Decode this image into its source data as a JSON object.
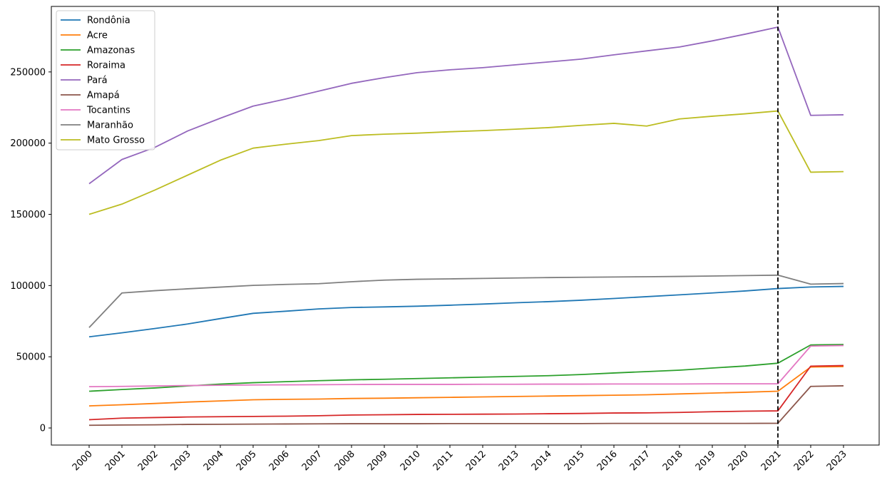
{
  "chart_data": {
    "type": "line",
    "x": [
      "2000",
      "2001",
      "2002",
      "2003",
      "2004",
      "2005",
      "2006",
      "2007",
      "2008",
      "2009",
      "2010",
      "2011",
      "2012",
      "2013",
      "2014",
      "2015",
      "2016",
      "2017",
      "2018",
      "2019",
      "2020",
      "2021",
      "2022",
      "2023"
    ],
    "ylim": [
      -12000,
      296000
    ],
    "yticks": [
      0,
      50000,
      100000,
      150000,
      200000,
      250000
    ],
    "grid": false,
    "legend_position": "top-left",
    "vline": {
      "x": "2021",
      "style": "dashed",
      "color": "#000000"
    },
    "series": [
      {
        "name": "Rondônia",
        "color": "#1f77b4",
        "values": [
          64000,
          66800,
          69800,
          73000,
          76800,
          80500,
          82000,
          83600,
          84600,
          85000,
          85500,
          86200,
          87000,
          87900,
          88700,
          89700,
          90900,
          92200,
          93500,
          94800,
          96200,
          97900,
          99000,
          99400
        ]
      },
      {
        "name": "Acre",
        "color": "#ff7f0e",
        "values": [
          15500,
          16300,
          17200,
          18200,
          19000,
          19800,
          20100,
          20300,
          20700,
          20900,
          21200,
          21500,
          21800,
          22100,
          22400,
          22700,
          23000,
          23300,
          23900,
          24500,
          25100,
          25800,
          42800,
          43100
        ]
      },
      {
        "name": "Amazonas",
        "color": "#2ca02c",
        "values": [
          25800,
          27000,
          28100,
          29500,
          30800,
          31800,
          32500,
          33200,
          33800,
          34200,
          34700,
          35200,
          35700,
          36200,
          36700,
          37500,
          38600,
          39600,
          40600,
          42100,
          43500,
          45500,
          58300,
          58600
        ]
      },
      {
        "name": "Roraima",
        "color": "#d62728",
        "values": [
          5800,
          6900,
          7300,
          7700,
          7900,
          8100,
          8300,
          8600,
          9100,
          9300,
          9500,
          9600,
          9700,
          9800,
          10000,
          10200,
          10500,
          10600,
          10900,
          11400,
          11800,
          12000,
          43400,
          43800
        ]
      },
      {
        "name": "Pará",
        "color": "#9467bd",
        "values": [
          171500,
          188500,
          197000,
          208500,
          217500,
          226000,
          231000,
          236500,
          242000,
          246000,
          249500,
          251500,
          253000,
          255000,
          257000,
          259000,
          262000,
          264800,
          267500,
          271800,
          276500,
          281500,
          219500,
          219900
        ]
      },
      {
        "name": "Amapá",
        "color": "#8c564b",
        "values": [
          1900,
          2100,
          2200,
          2500,
          2600,
          2700,
          2800,
          2900,
          3000,
          3000,
          3000,
          3100,
          3100,
          3100,
          3100,
          3100,
          3200,
          3200,
          3200,
          3200,
          3200,
          3300,
          29200,
          29600
        ]
      },
      {
        "name": "Tocantins",
        "color": "#e377c2",
        "values": [
          29000,
          29200,
          29500,
          29800,
          30000,
          30200,
          30300,
          30400,
          30500,
          30600,
          30600,
          30600,
          30700,
          30700,
          30800,
          30800,
          30900,
          30900,
          30900,
          31000,
          31000,
          31000,
          57500,
          57900
        ]
      },
      {
        "name": "Maranhão",
        "color": "#7f7f7f",
        "values": [
          70500,
          94800,
          96400,
          97700,
          98900,
          100100,
          100800,
          101300,
          102700,
          103800,
          104400,
          104700,
          105000,
          105300,
          105600,
          105800,
          106000,
          106200,
          106400,
          106700,
          107000,
          107300,
          101000,
          101400
        ]
      },
      {
        "name": "Mato Grosso",
        "color": "#bcbd22",
        "values": [
          150000,
          157200,
          167000,
          177500,
          188000,
          196500,
          199300,
          201800,
          205300,
          206300,
          207000,
          208000,
          208800,
          209800,
          210900,
          212500,
          213900,
          212000,
          217000,
          218900,
          220600,
          222600,
          179600,
          180000
        ]
      }
    ]
  }
}
